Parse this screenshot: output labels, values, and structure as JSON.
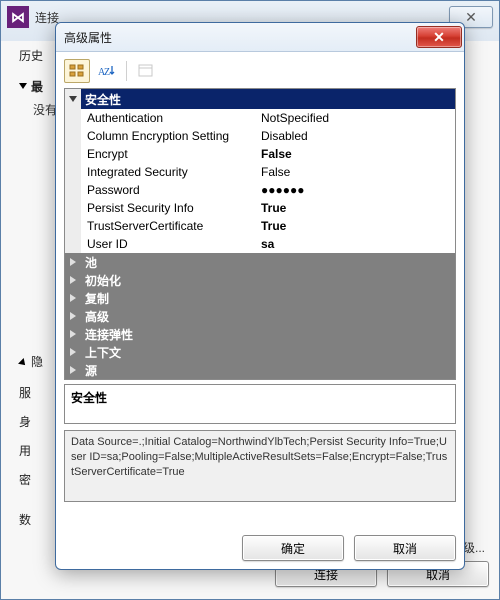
{
  "parent": {
    "title": "连接",
    "history_label": "历史",
    "recent_header": "最",
    "no_items": "没有",
    "hidden_label": "隐",
    "server_label": "服",
    "auth_label": "身",
    "user_label": "用",
    "pass_label": "密",
    "db_label": "数",
    "bottom_ok": "连接",
    "bottom_cancel": "取消",
    "right_tail": "级..."
  },
  "dialog": {
    "title": "高级属性",
    "close_glyph": "✕",
    "toolbar": {
      "categorized_tip": "Categorized",
      "alpha_tip": "Alphabetical",
      "pages_tip": "Property Pages"
    },
    "categories": {
      "security": {
        "label": "安全性",
        "props": [
          {
            "name": "Authentication",
            "value": "NotSpecified",
            "bold": false
          },
          {
            "name": "Column Encryption Setting",
            "value": "Disabled",
            "bold": false
          },
          {
            "name": "Encrypt",
            "value": "False",
            "bold": true
          },
          {
            "name": "Integrated Security",
            "value": "False",
            "bold": false
          },
          {
            "name": "Password",
            "value": "●●●●●●",
            "bold": true
          },
          {
            "name": "Persist Security Info",
            "value": "True",
            "bold": true
          },
          {
            "name": "TrustServerCertificate",
            "value": "True",
            "bold": true
          },
          {
            "name": "User ID",
            "value": "sa",
            "bold": true
          }
        ]
      },
      "collapsed": [
        "池",
        "初始化",
        "复制",
        "高级",
        "连接弹性",
        "上下文",
        "源"
      ]
    },
    "description_title": "安全性",
    "connection_string": "Data Source=.;Initial Catalog=NorthwindYlbTech;Persist Security Info=True;User ID=sa;Pooling=False;MultipleActiveResultSets=False;Encrypt=False;TrustServerCertificate=True",
    "ok": "确定",
    "cancel": "取消"
  },
  "colors": {
    "accent": "#68217a",
    "cat_bg": "#808080",
    "cat_selected_bg": "#0a246a"
  }
}
